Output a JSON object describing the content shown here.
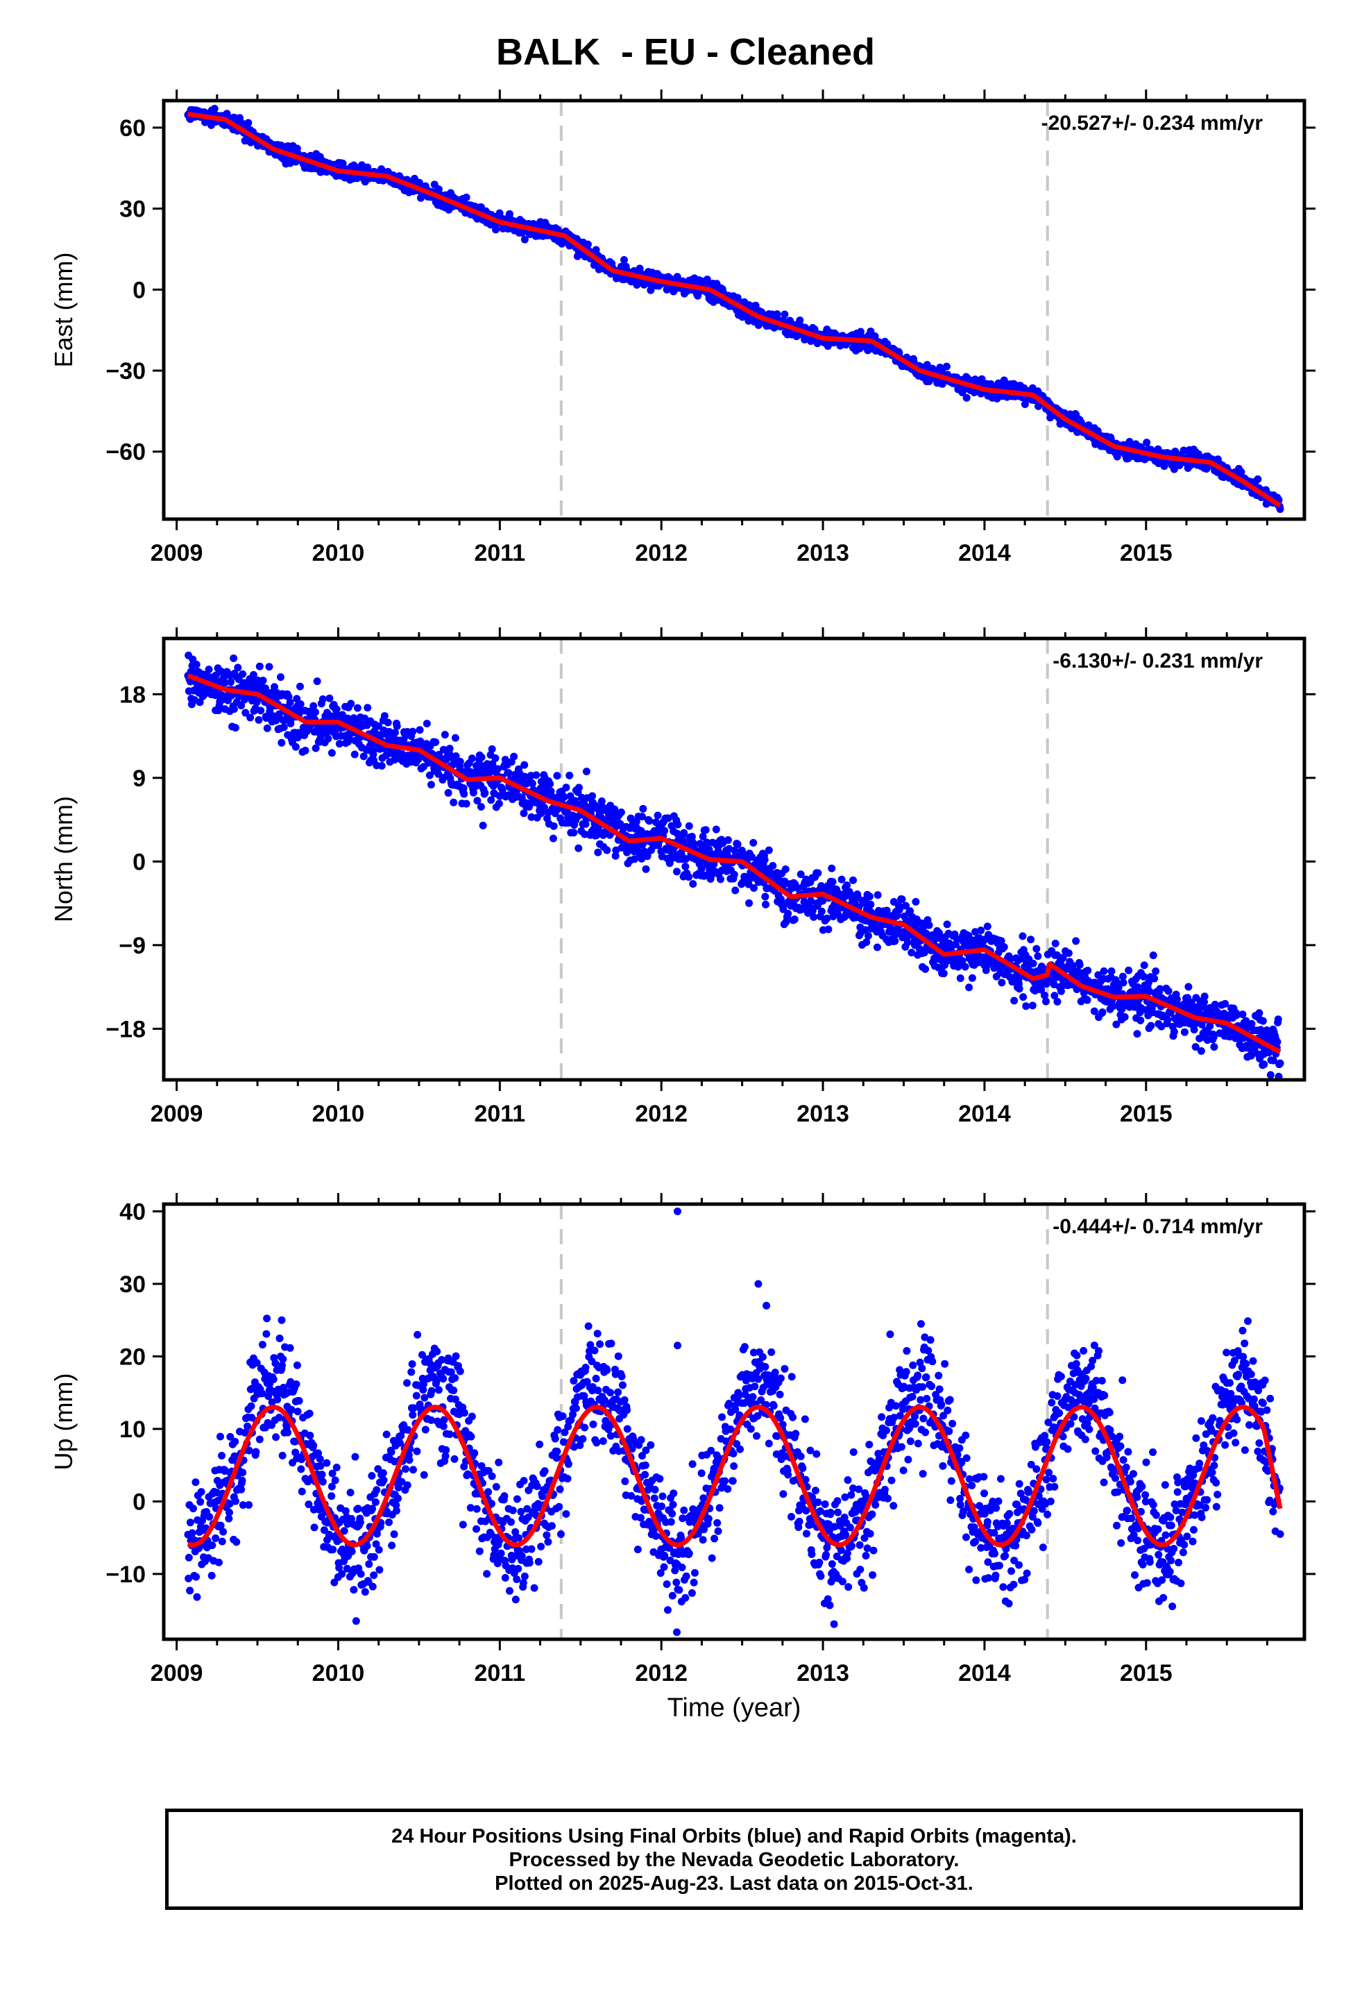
{
  "title": "BALK  - EU - Cleaned",
  "xlabel": "Time (year)",
  "footer": {
    "line1": "24 Hour Positions Using Final Orbits (blue) and Rapid Orbits (magenta).",
    "line2": "Processed by the Nevada Geodetic Laboratory.",
    "line3": "Plotted on 2025-Aug-23. Last data on 2015-Oct-31."
  },
  "colors": {
    "points": "#0000ff",
    "model": "#ff0000",
    "event_lines": "#c8c8c8"
  },
  "chart_data": [
    {
      "type": "scatter",
      "name": "East",
      "ylabel": "East (mm)",
      "rate_text": "-20.527+/- 0.234 mm/yr",
      "xlim": [
        2008.92,
        2015.98
      ],
      "ylim": [
        -85,
        70
      ],
      "yticks": [
        60,
        30,
        0,
        -30,
        -60
      ],
      "xticks": [
        2009,
        2010,
        2011,
        2012,
        2013,
        2014,
        2015
      ],
      "event_lines": [
        2011.38,
        2014.39
      ],
      "data_range": [
        2009.07,
        2015.83
      ],
      "model_curve": {
        "x": [
          2009.07,
          2009.3,
          2009.6,
          2010.0,
          2010.3,
          2010.6,
          2011.0,
          2011.4,
          2011.7,
          2012.0,
          2012.3,
          2012.6,
          2013.0,
          2013.3,
          2013.6,
          2014.0,
          2014.3,
          2014.5,
          2014.8,
          2015.1,
          2015.4,
          2015.6,
          2015.83
        ],
        "y": [
          65,
          63,
          52,
          44,
          42,
          35,
          25,
          20,
          7,
          3,
          0,
          -10,
          -18,
          -19,
          -30,
          -37,
          -39,
          -48,
          -58,
          -62,
          -64,
          -71,
          -80
        ]
      },
      "scatter_noise_mm": 1.5
    },
    {
      "type": "scatter",
      "name": "North",
      "ylabel": "North (mm)",
      "rate_text": "-6.130+/- 0.231 mm/yr",
      "xlim": [
        2008.92,
        2015.98
      ],
      "ylim": [
        -23.5,
        24
      ],
      "yticks": [
        18,
        9,
        0,
        -9,
        -18
      ],
      "xticks": [
        2009,
        2010,
        2011,
        2012,
        2013,
        2014,
        2015
      ],
      "event_lines": [
        2011.38,
        2014.39
      ],
      "data_range": [
        2009.07,
        2015.83
      ],
      "model_curve": {
        "x": [
          2009.07,
          2009.3,
          2009.5,
          2009.8,
          2010.0,
          2010.3,
          2010.5,
          2010.8,
          2011.0,
          2011.3,
          2011.5,
          2011.8,
          2012.0,
          2012.3,
          2012.5,
          2012.8,
          2013.0,
          2013.3,
          2013.5,
          2013.75,
          2014.0,
          2014.3,
          2014.39,
          2014.4,
          2014.6,
          2014.8,
          2015.0,
          2015.3,
          2015.5,
          2015.83
        ],
        "y": [
          20,
          18.5,
          18,
          15,
          15,
          12.5,
          12,
          8.8,
          9,
          6.5,
          5.5,
          2.2,
          2.5,
          0.2,
          0,
          -3.8,
          -3.5,
          -6.0,
          -6.8,
          -10,
          -9.5,
          -12.6,
          -12.2,
          -11.0,
          -13.4,
          -14.6,
          -14.5,
          -16.8,
          -17.4,
          -20.5
        ]
      },
      "scatter_noise_mm": 1.4
    },
    {
      "type": "scatter",
      "name": "Up",
      "ylabel": "Up (mm)",
      "rate_text": "-0.444+/- 0.714 mm/yr",
      "xlim": [
        2008.92,
        2015.98
      ],
      "ylim": [
        -19,
        41
      ],
      "yticks": [
        40,
        30,
        20,
        10,
        0,
        -10
      ],
      "xticks": [
        2009,
        2010,
        2011,
        2012,
        2013,
        2014,
        2015
      ],
      "event_lines": [
        2011.38,
        2014.39
      ],
      "data_range": [
        2009.07,
        2015.83
      ],
      "model_seasonal": {
        "mean_mm": 3.5,
        "amplitude_mm": 9.5,
        "peak_phase_year": 0.6
      },
      "model_end": [
        2015.83,
        -1.0
      ],
      "scatter_noise_mm": 4.0,
      "outliers": [
        [
          2012.1,
          40.0
        ],
        [
          2012.1,
          21.5
        ],
        [
          2012.6,
          30.0
        ],
        [
          2012.65,
          27.0
        ],
        [
          2009.65,
          25.0
        ]
      ]
    }
  ]
}
